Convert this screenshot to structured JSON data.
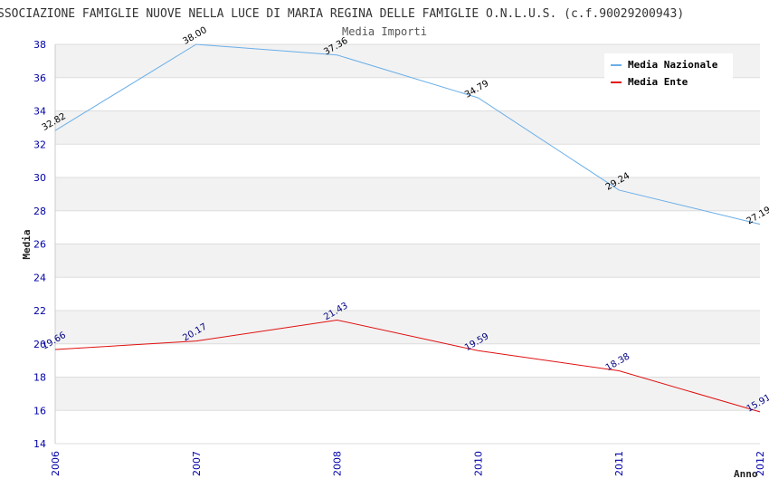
{
  "chart_data": {
    "type": "line",
    "title": "SSOCIAZIONE FAMIGLIE NUOVE NELLA LUCE DI MARIA REGINA DELLE FAMIGLIE O.N.L.U.S. (c.f.90029200943)",
    "subtitle": "Media Importi",
    "xlabel": "Anno",
    "ylabel": "Media",
    "categories": [
      "2006",
      "2007",
      "2008",
      "2010",
      "2011",
      "2012"
    ],
    "ylim": [
      14,
      38
    ],
    "yticks": [
      "14",
      "16",
      "18",
      "20",
      "22",
      "24",
      "26",
      "28",
      "30",
      "32",
      "34",
      "36",
      "38"
    ],
    "grid": true,
    "legend_position": "top-right",
    "series": [
      {
        "name": "Media Nazionale",
        "color": "#6aaee8",
        "label_color": "#000000",
        "values": [
          32.82,
          38.0,
          37.36,
          34.79,
          29.24,
          27.19
        ],
        "labels": [
          "32.82",
          "38.00",
          "37.36",
          "34.79",
          "29.24",
          "27.19"
        ]
      },
      {
        "name": "Media Ente",
        "color": "#e01010",
        "label_color": "#000080",
        "values": [
          19.66,
          20.17,
          21.43,
          19.59,
          18.38,
          15.91
        ],
        "labels": [
          "19.66",
          "20.17",
          "21.43",
          "19.59",
          "18.38",
          "15.91"
        ]
      }
    ]
  }
}
